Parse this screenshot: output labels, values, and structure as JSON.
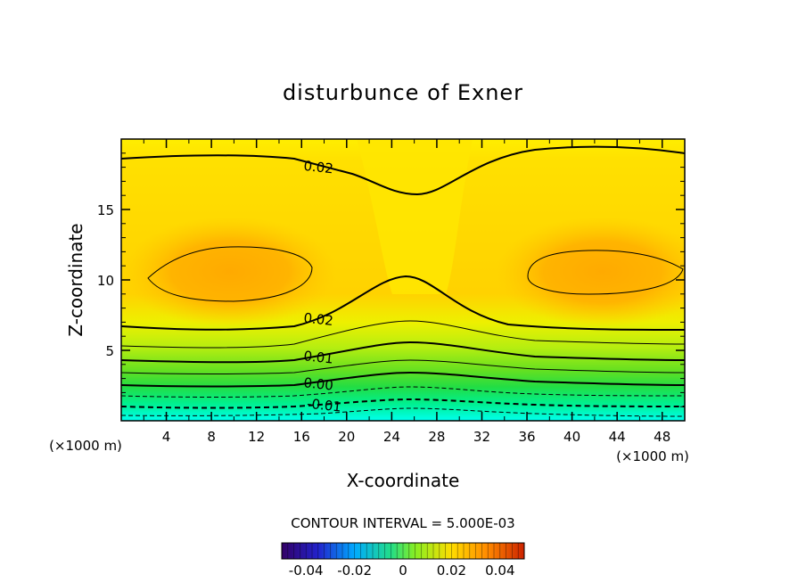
{
  "chart_data": {
    "type": "contour",
    "title": "disturbunce of Exner",
    "xlabel": "X-coordinate",
    "ylabel": "Z-coordinate",
    "x_unit_left": "(×1000 m)",
    "x_unit_right": "(×1000 m)",
    "xlim": [
      0,
      50
    ],
    "ylim": [
      0,
      20
    ],
    "x_ticks": [
      4,
      8,
      12,
      16,
      20,
      24,
      28,
      32,
      36,
      40,
      44,
      48
    ],
    "y_ticks": [
      5,
      10,
      15
    ],
    "contour_interval_text": "CONTOUR INTERVAL = 5.000E-03",
    "contour_labels": [
      {
        "text": "0.02",
        "x": 17.5,
        "z": 18.0
      },
      {
        "text": "0.02",
        "x": 17.5,
        "z": 7.2
      },
      {
        "text": "0.01",
        "x": 17.5,
        "z": 4.5
      },
      {
        "text": "0.00",
        "x": 17.5,
        "z": 2.6
      },
      {
        "text": "-0.01",
        "x": 18.0,
        "z": 1.1
      }
    ],
    "colorbar": {
      "range": [
        -0.05,
        0.05
      ],
      "tick_values": [
        -0.04,
        -0.02,
        0,
        0.02,
        0.04
      ],
      "tick_labels": [
        "-0.04",
        "-0.02",
        "0",
        "0.02",
        "0.04"
      ]
    },
    "colors": {
      "yellow": "#ffee00",
      "orange_light": "#ffd400",
      "orange": "#ffb300",
      "green": "#44dd22",
      "cyan": "#00ffee"
    }
  }
}
